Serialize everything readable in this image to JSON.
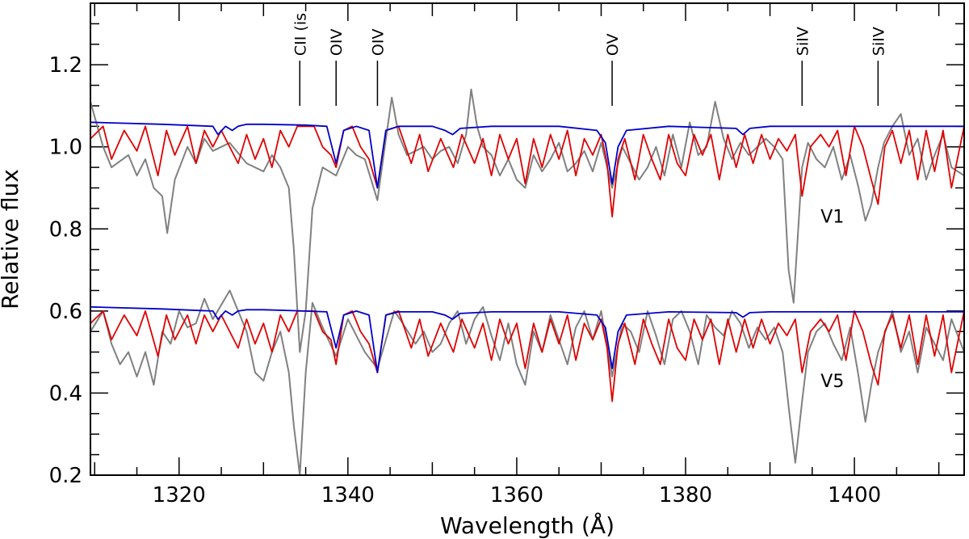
{
  "chart_data": {
    "type": "line",
    "title": "",
    "xlabel": "Wavelength (Å)",
    "ylabel": "Relative flux",
    "xlim": [
      1309.5,
      1413
    ],
    "ylim": [
      0.2,
      1.35
    ],
    "x_ticks": [
      1320,
      1340,
      1360,
      1380,
      1400
    ],
    "y_ticks": [
      0.2,
      0.4,
      0.6,
      0.8,
      1.0,
      1.2
    ],
    "x_tick_labels": [
      "1320",
      "1340",
      "1360",
      "1380",
      "1400"
    ],
    "y_tick_labels": [
      "0.2",
      "0.4",
      "0.6",
      "0.8",
      "1.0",
      "1.2"
    ],
    "colors": {
      "observed": "#808080",
      "model_red": "#e00000",
      "model_blue": "#0000cc",
      "axis": "#000000"
    },
    "line_identifications": [
      {
        "label": "CII (is",
        "x": 1334.3,
        "y_top": 1.21,
        "y_bottom": 1.1
      },
      {
        "label": "OIV",
        "x": 1338.6,
        "y_top": 1.21,
        "y_bottom": 1.1
      },
      {
        "label": "OIV",
        "x": 1343.5,
        "y_top": 1.21,
        "y_bottom": 1.1
      },
      {
        "label": "OV",
        "x": 1371.3,
        "y_top": 1.21,
        "y_bottom": 1.1
      },
      {
        "label": "SiIV",
        "x": 1393.8,
        "y_top": 1.21,
        "y_bottom": 1.1
      },
      {
        "label": "SiIV",
        "x": 1402.8,
        "y_top": 1.21,
        "y_bottom": 1.1
      }
    ],
    "spectrum_labels": [
      {
        "label": "V1",
        "x": 1396.0,
        "y": 0.815
      },
      {
        "label": "V5",
        "x": 1396.0,
        "y": 0.415
      }
    ],
    "series": [
      {
        "name": "Observed (V1)",
        "color": "#808080",
        "x": [
          1309.5,
          1311,
          1312,
          1314,
          1315,
          1316,
          1317,
          1318,
          1318.6,
          1319.5,
          1321,
          1322,
          1323,
          1324,
          1326,
          1328,
          1330,
          1331,
          1332,
          1333,
          1333.6,
          1334.3,
          1335,
          1335.8,
          1337,
          1338.6,
          1340,
          1341,
          1342,
          1343.5,
          1344.5,
          1345.2,
          1346,
          1347,
          1348,
          1349,
          1350,
          1351,
          1352,
          1353,
          1354,
          1354.6,
          1355.3,
          1356,
          1357,
          1358,
          1359,
          1360,
          1361,
          1362,
          1363,
          1364,
          1365,
          1366,
          1367,
          1368,
          1369,
          1370,
          1371.3,
          1372.5,
          1373.5,
          1374.5,
          1375.5,
          1376.5,
          1377.5,
          1378.5,
          1379.5,
          1380.5,
          1381.5,
          1382.5,
          1383.5,
          1384.5,
          1385.5,
          1386.5,
          1387.5,
          1388.5,
          1389.5,
          1390.5,
          1391.5,
          1392.2,
          1392.8,
          1393.8,
          1394.5,
          1395.5,
          1396.5,
          1397.5,
          1398.5,
          1399.5,
          1400.5,
          1401.3,
          1402,
          1402.8,
          1403.5,
          1404.5,
          1405.5,
          1406.5,
          1407.5,
          1408.5,
          1409.5,
          1410.5,
          1411.5,
          1413
        ],
        "values": [
          1.11,
          1.0,
          0.95,
          0.98,
          0.93,
          0.97,
          0.9,
          0.88,
          0.79,
          0.92,
          1.0,
          0.96,
          1.02,
          0.99,
          1.01,
          0.96,
          0.94,
          0.98,
          0.95,
          0.9,
          0.75,
          0.5,
          0.6,
          0.85,
          0.95,
          0.93,
          1.0,
          0.98,
          0.97,
          0.87,
          1.02,
          1.12,
          1.03,
          0.98,
          0.99,
          1.0,
          0.97,
          0.99,
          1.0,
          0.96,
          1.03,
          1.14,
          1.05,
          1.0,
          0.98,
          0.93,
          0.97,
          0.92,
          0.9,
          0.98,
          0.94,
          0.97,
          1.01,
          0.94,
          0.96,
          0.99,
          0.94,
          1.01,
          0.9,
          1.0,
          0.96,
          0.92,
          0.95,
          1.0,
          0.93,
          1.03,
          0.95,
          1.06,
          0.98,
          1.0,
          1.11,
          1.02,
          0.97,
          1.01,
          0.98,
          1.0,
          1.02,
          1.0,
          0.97,
          0.7,
          0.62,
          0.95,
          1.01,
          0.97,
          0.95,
          1.0,
          0.92,
          0.98,
          0.9,
          0.82,
          0.86,
          0.95,
          1.01,
          1.05,
          1.08,
          0.98,
          1.02,
          0.92,
          0.98,
          1.03,
          0.95,
          0.93
        ]
      },
      {
        "name": "Model red (V1)",
        "color": "#e00000",
        "x": [
          1309.5,
          1311,
          1312,
          1313.5,
          1315,
          1316,
          1317.5,
          1318.5,
          1319.5,
          1321,
          1322,
          1323,
          1324,
          1325,
          1327,
          1328,
          1329,
          1330,
          1331,
          1332,
          1333,
          1334,
          1336,
          1337,
          1338,
          1338.6,
          1339.5,
          1340.5,
          1341.5,
          1342.5,
          1343.5,
          1344.5,
          1346,
          1347.5,
          1348.5,
          1349.5,
          1351,
          1352.5,
          1353.5,
          1355,
          1356,
          1357,
          1358,
          1359,
          1360,
          1361,
          1362,
          1363,
          1364,
          1365,
          1366,
          1367,
          1368,
          1369,
          1370,
          1370.7,
          1371.3,
          1372,
          1372.8,
          1374,
          1375,
          1376,
          1377,
          1378,
          1379,
          1380,
          1381,
          1382,
          1383,
          1384,
          1385,
          1386,
          1387,
          1388,
          1389,
          1390,
          1391,
          1392,
          1393,
          1393.8,
          1394.8,
          1396,
          1397,
          1398,
          1399,
          1400,
          1401,
          1402,
          1402.8,
          1403.6,
          1404.5,
          1405.5,
          1406.5,
          1407.5,
          1408.5,
          1409.5,
          1410.5,
          1411.5,
          1413
        ],
        "values": [
          1.02,
          1.05,
          0.97,
          1.04,
          0.99,
          1.05,
          0.93,
          1.04,
          0.98,
          1.05,
          0.96,
          1.04,
          1.0,
          1.04,
          0.96,
          1.03,
          0.97,
          1.02,
          0.95,
          1.04,
          1.0,
          1.05,
          1.05,
          1.0,
          0.98,
          0.95,
          1.04,
          1.05,
          1.0,
          0.97,
          0.9,
          1.04,
          1.05,
          0.96,
          1.03,
          0.94,
          1.02,
          0.95,
          1.03,
          0.96,
          1.02,
          0.93,
          1.03,
          0.97,
          1.02,
          0.91,
          1.02,
          0.95,
          1.03,
          0.97,
          1.04,
          0.93,
          1.02,
          0.98,
          1.03,
          0.96,
          0.83,
          0.97,
          1.02,
          0.92,
          1.03,
          0.97,
          0.92,
          1.03,
          0.96,
          0.93,
          1.03,
          0.98,
          1.03,
          0.92,
          1.03,
          0.95,
          1.03,
          0.96,
          1.03,
          0.97,
          1.02,
          0.99,
          1.03,
          0.88,
          1.0,
          1.03,
          1.0,
          1.04,
          0.93,
          1.05,
          1.0,
          0.92,
          0.86,
          1.0,
          1.04,
          0.96,
          1.04,
          0.92,
          1.04,
          0.94,
          1.04,
          0.9,
          1.05
        ]
      },
      {
        "name": "Model blue (V1)",
        "color": "#0000cc",
        "x": [
          1309.5,
          1318,
          1324,
          1324.6,
          1325.5,
          1326.3,
          1327,
          1328,
          1330,
          1335,
          1337.5,
          1338.6,
          1339.5,
          1341,
          1342.5,
          1343.5,
          1344.5,
          1346,
          1350,
          1351.5,
          1352.4,
          1353.3,
          1357,
          1365,
          1369.5,
          1370.5,
          1371.3,
          1372,
          1373,
          1378,
          1386,
          1386.8,
          1387.6,
          1390,
          1400,
          1413
        ],
        "values": [
          1.06,
          1.055,
          1.05,
          1.03,
          1.05,
          1.04,
          1.05,
          1.055,
          1.055,
          1.053,
          1.05,
          0.96,
          1.04,
          1.05,
          1.04,
          0.9,
          1.04,
          1.05,
          1.05,
          1.04,
          1.03,
          1.045,
          1.05,
          1.05,
          1.04,
          1.01,
          0.91,
          1.0,
          1.04,
          1.05,
          1.045,
          1.03,
          1.045,
          1.05,
          1.05,
          1.05
        ]
      },
      {
        "name": "Observed (V5)",
        "color": "#808080",
        "x": [
          1309.5,
          1311,
          1312,
          1313,
          1314,
          1315,
          1316,
          1317,
          1318,
          1319,
          1320,
          1321,
          1322,
          1323,
          1324,
          1326,
          1328,
          1329,
          1330,
          1331,
          1332,
          1333,
          1333.6,
          1334.3,
          1335,
          1335.8,
          1337,
          1338.6,
          1340,
          1341,
          1342,
          1343.5,
          1344.5,
          1345.5,
          1346.5,
          1348,
          1349,
          1350,
          1351,
          1352,
          1353,
          1354,
          1355,
          1356,
          1357,
          1358,
          1359,
          1360,
          1361,
          1362,
          1363,
          1364,
          1365,
          1366,
          1367,
          1368,
          1369,
          1370,
          1371.3,
          1372.5,
          1373.5,
          1374.5,
          1375.5,
          1376.5,
          1377.5,
          1378.5,
          1379.5,
          1380.5,
          1381.5,
          1382.5,
          1383.5,
          1384.5,
          1385.5,
          1386.5,
          1387.5,
          1388.5,
          1389.5,
          1390.5,
          1391.5,
          1392.3,
          1393,
          1393.8,
          1394.5,
          1395.5,
          1396.5,
          1397.5,
          1398.5,
          1399.5,
          1400.5,
          1401.3,
          1402,
          1402.8,
          1403.5,
          1404.5,
          1405.5,
          1406.5,
          1407.5,
          1408.5,
          1409.5,
          1410.5,
          1411.5,
          1413
        ],
        "values": [
          0.55,
          0.6,
          0.52,
          0.47,
          0.5,
          0.44,
          0.5,
          0.42,
          0.55,
          0.52,
          0.6,
          0.56,
          0.57,
          0.63,
          0.58,
          0.65,
          0.55,
          0.45,
          0.43,
          0.5,
          0.55,
          0.45,
          0.32,
          0.2,
          0.45,
          0.62,
          0.56,
          0.49,
          0.58,
          0.54,
          0.5,
          0.46,
          0.53,
          0.6,
          0.57,
          0.52,
          0.55,
          0.5,
          0.52,
          0.57,
          0.6,
          0.52,
          0.58,
          0.61,
          0.54,
          0.48,
          0.57,
          0.47,
          0.42,
          0.55,
          0.5,
          0.59,
          0.53,
          0.47,
          0.56,
          0.6,
          0.53,
          0.6,
          0.44,
          0.57,
          0.55,
          0.5,
          0.6,
          0.54,
          0.47,
          0.58,
          0.6,
          0.55,
          0.47,
          0.59,
          0.56,
          0.54,
          0.6,
          0.57,
          0.51,
          0.56,
          0.53,
          0.56,
          0.5,
          0.35,
          0.23,
          0.38,
          0.5,
          0.55,
          0.57,
          0.52,
          0.48,
          0.56,
          0.44,
          0.33,
          0.42,
          0.5,
          0.54,
          0.6,
          0.5,
          0.55,
          0.45,
          0.56,
          0.52,
          0.48,
          0.58,
          0.5
        ]
      },
      {
        "name": "Model red (V5)",
        "color": "#e00000",
        "x": [
          1309.5,
          1311,
          1312,
          1313.5,
          1315,
          1316,
          1317.5,
          1318.5,
          1319.5,
          1321,
          1322,
          1323,
          1324,
          1325,
          1327,
          1328,
          1329,
          1330,
          1331,
          1332,
          1333,
          1334,
          1336,
          1337,
          1338,
          1338.6,
          1339.5,
          1340.5,
          1341.5,
          1342.5,
          1343.5,
          1344.5,
          1346,
          1347.5,
          1348.5,
          1349.5,
          1351,
          1352.5,
          1353.5,
          1355,
          1356,
          1357,
          1358,
          1359,
          1360,
          1361,
          1362,
          1363,
          1364,
          1365,
          1366,
          1367,
          1368,
          1369,
          1370,
          1370.7,
          1371.3,
          1372,
          1372.8,
          1374,
          1375,
          1376,
          1377,
          1378,
          1379,
          1380,
          1381,
          1382,
          1383,
          1384,
          1385,
          1386,
          1387,
          1388,
          1389,
          1390,
          1391,
          1392,
          1393,
          1393.8,
          1394.8,
          1396,
          1397,
          1398,
          1399,
          1400,
          1401,
          1402,
          1402.8,
          1403.6,
          1404.5,
          1405.5,
          1406.5,
          1407.5,
          1408.5,
          1409.5,
          1410.5,
          1411.5,
          1413
        ],
        "values": [
          0.57,
          0.6,
          0.53,
          0.59,
          0.54,
          0.6,
          0.49,
          0.59,
          0.53,
          0.59,
          0.52,
          0.59,
          0.55,
          0.59,
          0.51,
          0.58,
          0.52,
          0.57,
          0.5,
          0.59,
          0.55,
          0.6,
          0.6,
          0.55,
          0.53,
          0.47,
          0.59,
          0.6,
          0.55,
          0.52,
          0.45,
          0.59,
          0.6,
          0.51,
          0.58,
          0.49,
          0.57,
          0.5,
          0.58,
          0.51,
          0.57,
          0.48,
          0.58,
          0.52,
          0.57,
          0.46,
          0.57,
          0.5,
          0.58,
          0.52,
          0.59,
          0.48,
          0.57,
          0.53,
          0.58,
          0.51,
          0.38,
          0.52,
          0.57,
          0.47,
          0.58,
          0.52,
          0.47,
          0.58,
          0.51,
          0.48,
          0.58,
          0.53,
          0.58,
          0.47,
          0.58,
          0.5,
          0.58,
          0.51,
          0.58,
          0.52,
          0.57,
          0.54,
          0.58,
          0.45,
          0.55,
          0.58,
          0.55,
          0.59,
          0.48,
          0.6,
          0.55,
          0.47,
          0.42,
          0.55,
          0.59,
          0.51,
          0.59,
          0.47,
          0.59,
          0.49,
          0.59,
          0.45,
          0.6
        ]
      },
      {
        "name": "Model blue (V5)",
        "color": "#0000cc",
        "x": [
          1309.5,
          1318,
          1324,
          1324.6,
          1325.5,
          1326.3,
          1327,
          1328,
          1330,
          1335,
          1337.5,
          1338.6,
          1339.5,
          1341,
          1342.5,
          1343.5,
          1344.5,
          1346,
          1350,
          1351.5,
          1352.4,
          1353.3,
          1357,
          1365,
          1369.5,
          1370.5,
          1371.3,
          1372,
          1373,
          1378,
          1386,
          1386.8,
          1387.6,
          1390,
          1400,
          1413
        ],
        "values": [
          0.61,
          0.605,
          0.6,
          0.58,
          0.6,
          0.59,
          0.6,
          0.603,
          0.603,
          0.6,
          0.598,
          0.51,
          0.59,
          0.6,
          0.59,
          0.45,
          0.59,
          0.598,
          0.598,
          0.59,
          0.58,
          0.594,
          0.598,
          0.598,
          0.59,
          0.56,
          0.46,
          0.55,
          0.59,
          0.598,
          0.596,
          0.585,
          0.596,
          0.598,
          0.598,
          0.598
        ]
      }
    ]
  }
}
